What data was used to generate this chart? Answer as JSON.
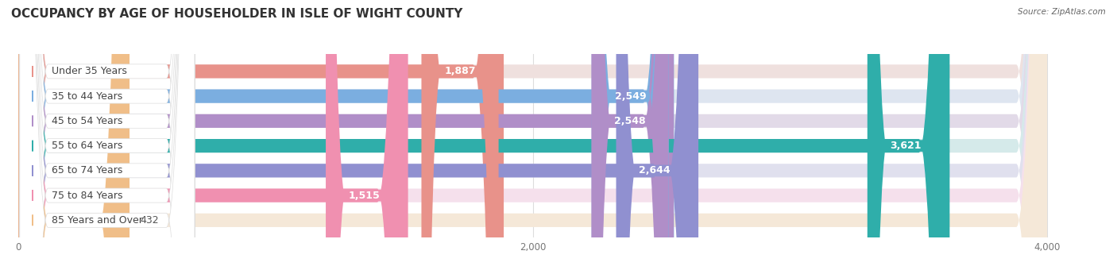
{
  "title": "OCCUPANCY BY AGE OF HOUSEHOLDER IN ISLE OF WIGHT COUNTY",
  "source": "Source: ZipAtlas.com",
  "categories": [
    "Under 35 Years",
    "35 to 44 Years",
    "45 to 54 Years",
    "55 to 64 Years",
    "65 to 74 Years",
    "75 to 84 Years",
    "85 Years and Over"
  ],
  "values": [
    1887,
    2549,
    2548,
    3621,
    2644,
    1515,
    432
  ],
  "bar_colors": [
    "#E8928A",
    "#7BAEE0",
    "#B08EC8",
    "#2FAEAA",
    "#9090D0",
    "#F090B0",
    "#F0BE88"
  ],
  "bar_bg_colors": [
    "#EFE0DE",
    "#DEE5F0",
    "#E2DAE8",
    "#D5EAEA",
    "#E0E0EE",
    "#F5E0EC",
    "#F5E8D8"
  ],
  "dot_colors": [
    "#E8928A",
    "#7BAEE0",
    "#B08EC8",
    "#2FAEAA",
    "#9090D0",
    "#F090B0",
    "#F0BE88"
  ],
  "xlim": [
    0,
    4200
  ],
  "xtick_values": [
    0,
    2000,
    4000
  ],
  "background_color": "#FFFFFF",
  "title_fontsize": 11,
  "label_fontsize": 9,
  "value_fontsize": 9
}
